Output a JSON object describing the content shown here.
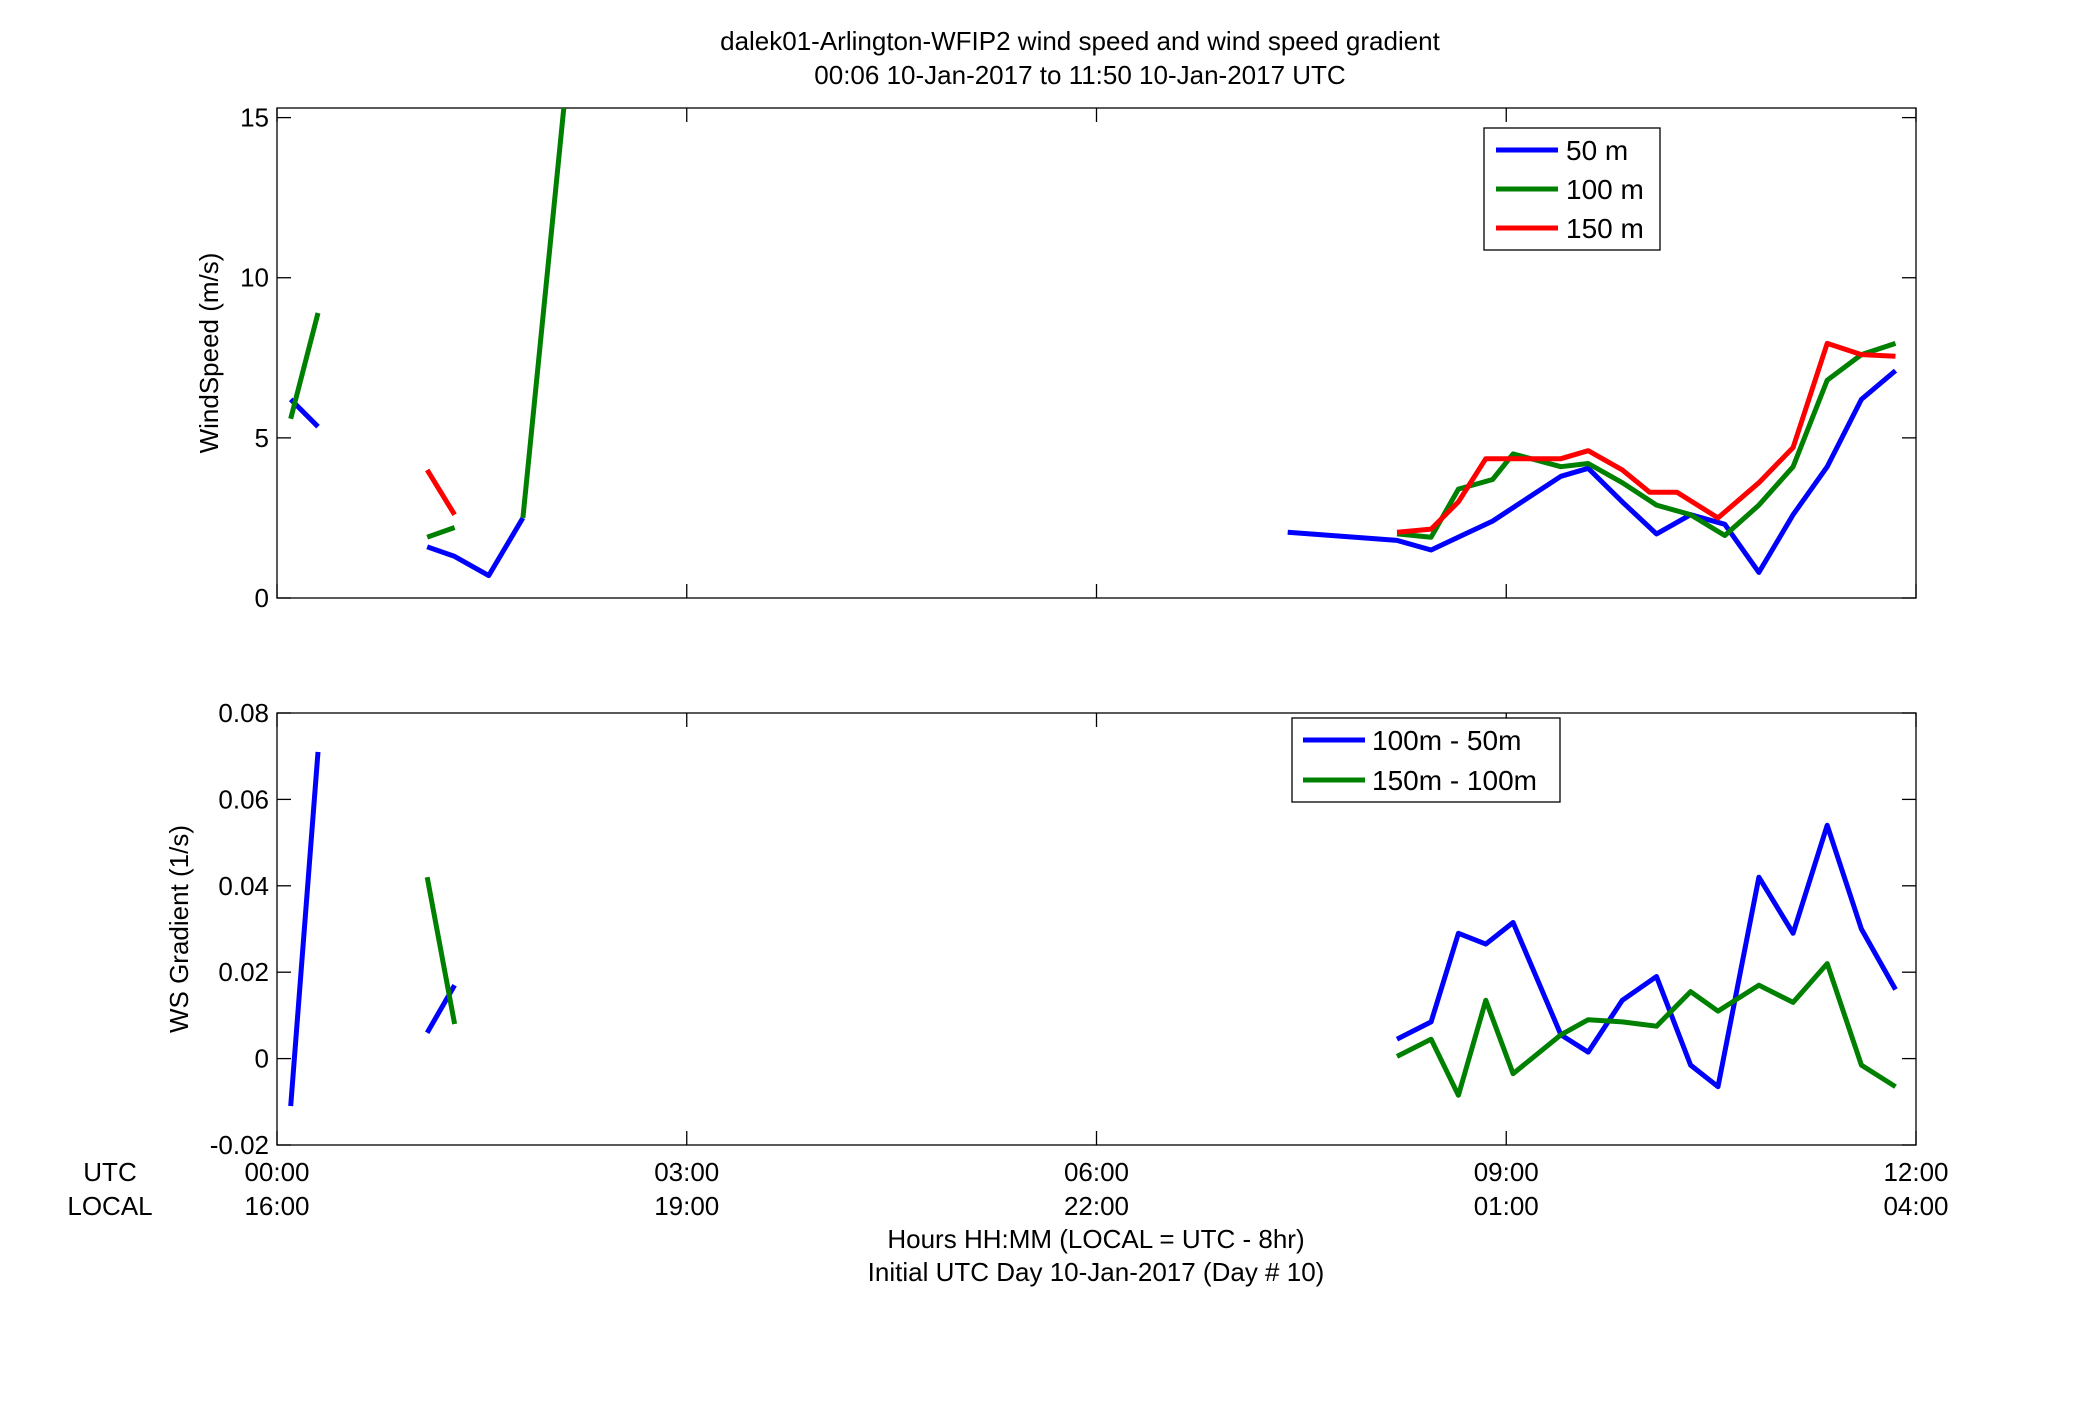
{
  "figure": {
    "title_line1": "dalek01-Arlington-WFIP2  wind speed and wind speed gradient",
    "title_line2": "00:06 10-Jan-2017 to 11:50 10-Jan-2017  UTC",
    "row_label_utc": "UTC",
    "row_label_local": "LOCAL",
    "xlabel_line1": "Hours HH:MM  (LOCAL = UTC - 8hr)",
    "xlabel_line2": "Initial UTC Day 10-Jan-2017 (Day # 10)",
    "x_utc_ticks": [
      "00:00",
      "03:00",
      "06:00",
      "09:00",
      "12:00"
    ],
    "x_local_ticks": [
      "16:00",
      "19:00",
      "22:00",
      "01:00",
      "04:00"
    ]
  },
  "chart_data": [
    {
      "type": "line",
      "ylabel": "WindSpeed (m/s)",
      "xlim": [
        0,
        12
      ],
      "ylim": [
        0,
        15.3
      ],
      "yticks": [
        0,
        5,
        10,
        15
      ],
      "xticks": [
        0,
        3,
        6,
        9,
        12
      ],
      "grid": false,
      "legend": "top-right",
      "series": [
        {
          "name": "50 m",
          "color": "#0000ff",
          "segments": [
            [
              [
                0.1,
                6.2
              ],
              [
                0.3,
                5.35
              ]
            ],
            [
              [
                1.1,
                1.6
              ],
              [
                1.3,
                1.3
              ],
              [
                1.55,
                0.7
              ],
              [
                1.8,
                2.5
              ]
            ],
            [
              [
                7.4,
                2.05
              ],
              [
                8.2,
                1.8
              ],
              [
                8.45,
                1.5
              ],
              [
                8.7,
                2.0
              ],
              [
                8.9,
                2.4
              ],
              [
                9.15,
                3.1
              ],
              [
                9.4,
                3.8
              ],
              [
                9.6,
                4.05
              ],
              [
                9.85,
                3.0
              ],
              [
                10.1,
                2.0
              ],
              [
                10.35,
                2.6
              ],
              [
                10.6,
                2.3
              ],
              [
                10.85,
                0.8
              ],
              [
                11.1,
                2.6
              ],
              [
                11.35,
                4.1
              ],
              [
                11.6,
                6.2
              ],
              [
                11.85,
                7.1
              ]
            ]
          ]
        },
        {
          "name": "100 m",
          "color": "#008000",
          "segments": [
            [
              [
                0.1,
                5.6
              ],
              [
                0.3,
                8.9
              ]
            ],
            [
              [
                1.1,
                1.9
              ],
              [
                1.3,
                2.2
              ]
            ],
            [
              [
                1.8,
                2.5
              ],
              [
                2.1,
                15.3
              ]
            ],
            [
              [
                8.2,
                2.0
              ],
              [
                8.45,
                1.9
              ],
              [
                8.65,
                3.4
              ],
              [
                8.9,
                3.7
              ],
              [
                9.05,
                4.5
              ],
              [
                9.4,
                4.1
              ],
              [
                9.6,
                4.2
              ],
              [
                9.85,
                3.6
              ],
              [
                10.1,
                2.9
              ],
              [
                10.35,
                2.6
              ],
              [
                10.6,
                1.95
              ],
              [
                10.85,
                2.9
              ],
              [
                11.1,
                4.1
              ],
              [
                11.35,
                6.8
              ],
              [
                11.6,
                7.6
              ],
              [
                11.85,
                7.95
              ]
            ]
          ]
        },
        {
          "name": "150 m",
          "color": "#ff0000",
          "segments": [
            [
              [
                1.1,
                4.0
              ],
              [
                1.3,
                2.6
              ]
            ],
            [
              [
                8.2,
                2.05
              ],
              [
                8.45,
                2.15
              ],
              [
                8.65,
                3.0
              ],
              [
                8.85,
                4.35
              ],
              [
                9.15,
                4.35
              ],
              [
                9.4,
                4.35
              ],
              [
                9.6,
                4.6
              ],
              [
                9.85,
                4.0
              ],
              [
                10.05,
                3.3
              ],
              [
                10.25,
                3.3
              ],
              [
                10.55,
                2.5
              ],
              [
                10.85,
                3.6
              ],
              [
                11.1,
                4.7
              ],
              [
                11.35,
                7.95
              ],
              [
                11.6,
                7.6
              ],
              [
                11.85,
                7.55
              ]
            ]
          ]
        }
      ]
    },
    {
      "type": "line",
      "ylabel": "WS Gradient (1/s)",
      "xlim": [
        0,
        12
      ],
      "ylim": [
        -0.02,
        0.08
      ],
      "yticks": [
        -0.02,
        0,
        0.02,
        0.04,
        0.06,
        0.08
      ],
      "ytick_labels": [
        "-0.02",
        "0",
        "0.02",
        "0.04",
        "0.06",
        "0.08"
      ],
      "xticks": [
        0,
        3,
        6,
        9,
        12
      ],
      "grid": false,
      "legend": "top-right",
      "series": [
        {
          "name": "100m - 50m",
          "color": "#0000ff",
          "segments": [
            [
              [
                0.1,
                -0.011
              ],
              [
                0.3,
                0.071
              ]
            ],
            [
              [
                1.1,
                0.006
              ],
              [
                1.3,
                0.017
              ]
            ],
            [
              [
                8.2,
                0.0045
              ],
              [
                8.45,
                0.0085
              ],
              [
                8.65,
                0.029
              ],
              [
                8.85,
                0.0265
              ],
              [
                9.05,
                0.0315
              ],
              [
                9.4,
                0.0055
              ],
              [
                9.6,
                0.0015
              ],
              [
                9.85,
                0.0135
              ],
              [
                10.1,
                0.019
              ],
              [
                10.35,
                -0.0015
              ],
              [
                10.55,
                -0.0065
              ],
              [
                10.85,
                0.042
              ],
              [
                11.1,
                0.029
              ],
              [
                11.35,
                0.054
              ],
              [
                11.6,
                0.03
              ],
              [
                11.85,
                0.016
              ]
            ]
          ]
        },
        {
          "name": "150m - 100m",
          "color": "#008000",
          "segments": [
            [
              [
                1.1,
                0.042
              ],
              [
                1.3,
                0.008
              ]
            ],
            [
              [
                8.2,
                0.0005
              ],
              [
                8.45,
                0.0045
              ],
              [
                8.65,
                -0.0085
              ],
              [
                8.85,
                0.0135
              ],
              [
                9.05,
                -0.0035
              ],
              [
                9.4,
                0.0055
              ],
              [
                9.6,
                0.009
              ],
              [
                9.85,
                0.0085
              ],
              [
                10.1,
                0.0075
              ],
              [
                10.35,
                0.0155
              ],
              [
                10.55,
                0.011
              ],
              [
                10.85,
                0.017
              ],
              [
                11.1,
                0.013
              ],
              [
                11.35,
                0.022
              ],
              [
                11.6,
                -0.0015
              ],
              [
                11.85,
                -0.0065
              ]
            ]
          ]
        }
      ]
    }
  ]
}
